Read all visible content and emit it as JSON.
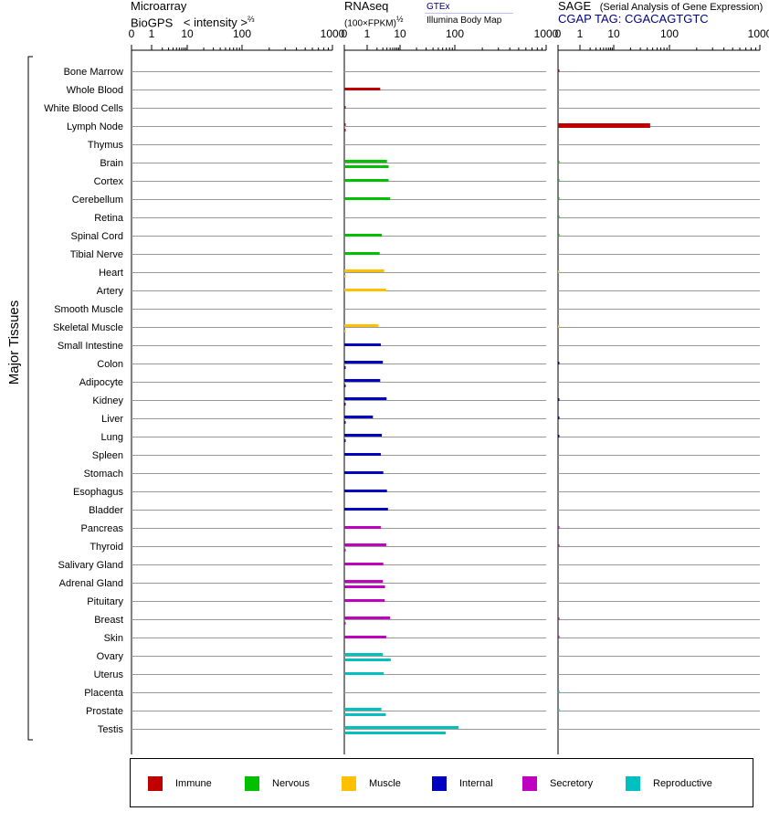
{
  "headers": {
    "microarray": {
      "line1": "Microarray",
      "line2": "BioGPS",
      "intensity": "< intensity >",
      "exponent": "⅔"
    },
    "rnaseq": {
      "line1": "RNAseq",
      "line2": "(100×FPKM)",
      "exponent": "½",
      "source1": "GTEx",
      "source2": "Illumina Body Map"
    },
    "sage": {
      "title": "SAGE",
      "subtitle": "(Serial Analysis of Gene Expression)",
      "tag": "CGAP TAG: CGACAGTGTC"
    }
  },
  "y_group_label": "Major Tissues",
  "colors": {
    "Immune": "#c00000",
    "Nervous": "#00c000",
    "Muscle": "#ffc000",
    "Internal": "#0000c0",
    "Secretory": "#c000c0",
    "Reproductive": "#00c0c0"
  },
  "legend": [
    {
      "label": "Immune",
      "color": "#c00000"
    },
    {
      "label": "Nervous",
      "color": "#00c000"
    },
    {
      "label": "Muscle",
      "color": "#ffc000"
    },
    {
      "label": "Internal",
      "color": "#0000c0"
    },
    {
      "label": "Secretory",
      "color": "#c000c0"
    },
    {
      "label": "Reproductive",
      "color": "#00c0c0"
    }
  ],
  "chart_data": {
    "type": "bar",
    "orientation": "horizontal",
    "scales": {
      "microarray": {
        "ticks": [
          "0",
          "1",
          "10",
          "100",
          "1000"
        ],
        "transform": "power 2/3",
        "range": [
          0,
          1000
        ]
      },
      "rnaseq": {
        "ticks": [
          "0",
          "1",
          "10",
          "100",
          "1000"
        ],
        "transform": "log",
        "range": [
          0,
          1000
        ]
      },
      "sage": {
        "ticks": [
          "0",
          "1",
          "10",
          "100",
          "1000"
        ],
        "transform": "log",
        "range": [
          0,
          1000
        ]
      }
    },
    "tissues": [
      {
        "name": "Bone Marrow",
        "system": "Immune",
        "microarray": [],
        "rnaseq": [],
        "sage": [
          0.05
        ]
      },
      {
        "name": "Whole Blood",
        "system": "Immune",
        "microarray": [],
        "rnaseq": [
          2.5
        ],
        "sage": []
      },
      {
        "name": "White Blood Cells",
        "system": "Immune",
        "microarray": [],
        "rnaseq": [
          0.05
        ],
        "sage": []
      },
      {
        "name": "Lymph Node",
        "system": "Immune",
        "microarray": [],
        "rnaseq": [
          0.04,
          0.04
        ],
        "sage": [
          45
        ]
      },
      {
        "name": "Thymus",
        "system": "Immune",
        "microarray": [],
        "rnaseq": [],
        "sage": []
      },
      {
        "name": "Brain",
        "system": "Nervous",
        "microarray": [],
        "rnaseq": [
          4.0,
          4.5
        ],
        "sage": [
          0.05
        ]
      },
      {
        "name": "Cortex",
        "system": "Nervous",
        "microarray": [],
        "rnaseq": [
          4.5
        ],
        "sage": [
          0.05
        ]
      },
      {
        "name": "Cerebellum",
        "system": "Nervous",
        "microarray": [],
        "rnaseq": [
          5.0
        ],
        "sage": [
          0.05
        ]
      },
      {
        "name": "Retina",
        "system": "Nervous",
        "microarray": [],
        "rnaseq": [],
        "sage": [
          0.05
        ]
      },
      {
        "name": "Spinal Cord",
        "system": "Nervous",
        "microarray": [],
        "rnaseq": [
          2.8
        ],
        "sage": [
          0.05
        ]
      },
      {
        "name": "Tibial Nerve",
        "system": "Nervous",
        "microarray": [],
        "rnaseq": [
          2.4
        ],
        "sage": []
      },
      {
        "name": "Heart",
        "system": "Muscle",
        "microarray": [],
        "rnaseq": [
          3.3,
          0.04
        ],
        "sage": [
          0.04
        ]
      },
      {
        "name": "Artery",
        "system": "Muscle",
        "microarray": [],
        "rnaseq": [
          3.8
        ],
        "sage": []
      },
      {
        "name": "Smooth Muscle",
        "system": "Muscle",
        "microarray": [],
        "rnaseq": [],
        "sage": []
      },
      {
        "name": "Skeletal Muscle",
        "system": "Muscle",
        "microarray": [],
        "rnaseq": [
          2.2,
          0.04
        ],
        "sage": [
          0.04
        ]
      },
      {
        "name": "Small Intestine",
        "system": "Internal",
        "microarray": [],
        "rnaseq": [
          2.6
        ],
        "sage": []
      },
      {
        "name": "Colon",
        "system": "Internal",
        "microarray": [],
        "rnaseq": [
          3.0,
          0.05
        ],
        "sage": [
          0.05
        ]
      },
      {
        "name": "Adipocyte",
        "system": "Internal",
        "microarray": [],
        "rnaseq": [
          2.5,
          0.05
        ],
        "sage": []
      },
      {
        "name": "Kidney",
        "system": "Internal",
        "microarray": [],
        "rnaseq": [
          3.9,
          0.05
        ],
        "sage": [
          0.05
        ]
      },
      {
        "name": "Liver",
        "system": "Internal",
        "microarray": [],
        "rnaseq": [
          1.5,
          0.04
        ],
        "sage": [
          0.05
        ]
      },
      {
        "name": "Lung",
        "system": "Internal",
        "microarray": [],
        "rnaseq": [
          2.8,
          0.05
        ],
        "sage": [
          0.05
        ]
      },
      {
        "name": "Spleen",
        "system": "Internal",
        "microarray": [],
        "rnaseq": [
          2.6
        ],
        "sage": []
      },
      {
        "name": "Stomach",
        "system": "Internal",
        "microarray": [],
        "rnaseq": [
          3.1
        ],
        "sage": []
      },
      {
        "name": "Esophagus",
        "system": "Internal",
        "microarray": [],
        "rnaseq": [
          4.0
        ],
        "sage": []
      },
      {
        "name": "Bladder",
        "system": "Internal",
        "microarray": [],
        "rnaseq": [
          4.3
        ],
        "sage": []
      },
      {
        "name": "Pancreas",
        "system": "Secretory",
        "microarray": [],
        "rnaseq": [
          2.6
        ],
        "sage": [
          0.05
        ]
      },
      {
        "name": "Thyroid",
        "system": "Secretory",
        "microarray": [],
        "rnaseq": [
          3.8,
          0.05
        ],
        "sage": [
          0.05
        ]
      },
      {
        "name": "Salivary Gland",
        "system": "Secretory",
        "microarray": [],
        "rnaseq": [
          3.1
        ],
        "sage": []
      },
      {
        "name": "Adrenal Gland",
        "system": "Secretory",
        "microarray": [],
        "rnaseq": [
          3.0,
          3.5
        ],
        "sage": []
      },
      {
        "name": "Pituitary",
        "system": "Secretory",
        "microarray": [],
        "rnaseq": [
          3.4
        ],
        "sage": []
      },
      {
        "name": "Breast",
        "system": "Secretory",
        "microarray": [],
        "rnaseq": [
          5.0,
          0.05
        ],
        "sage": [
          0.05
        ]
      },
      {
        "name": "Skin",
        "system": "Secretory",
        "microarray": [],
        "rnaseq": [
          3.8
        ],
        "sage": [
          0.05
        ]
      },
      {
        "name": "Ovary",
        "system": "Reproductive",
        "microarray": [],
        "rnaseq": [
          3.0,
          5.2
        ],
        "sage": []
      },
      {
        "name": "Uterus",
        "system": "Reproductive",
        "microarray": [],
        "rnaseq": [
          3.2
        ],
        "sage": []
      },
      {
        "name": "Placenta",
        "system": "Reproductive",
        "microarray": [],
        "rnaseq": [],
        "sage": [
          0.04
        ]
      },
      {
        "name": "Prostate",
        "system": "Reproductive",
        "microarray": [],
        "rnaseq": [
          2.7,
          3.7
        ],
        "sage": [
          0.04
        ]
      },
      {
        "name": "Testis",
        "system": "Reproductive",
        "microarray": [],
        "rnaseq": [
          110,
          68
        ],
        "sage": []
      }
    ]
  }
}
